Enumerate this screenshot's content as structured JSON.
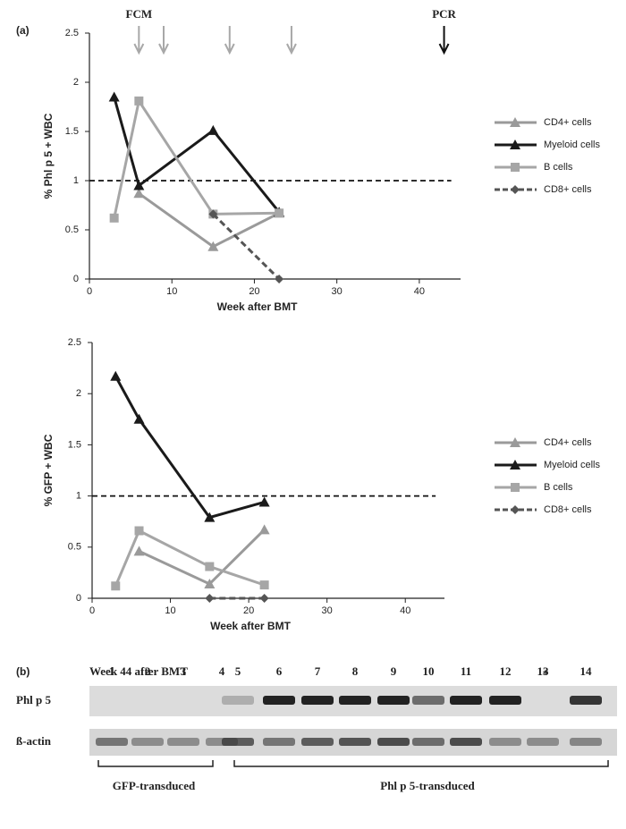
{
  "panel_a_label": "(a)",
  "panel_b_label": "(b)",
  "chart_data": [
    {
      "type": "line",
      "ylabel": "% Phl p 5 + WBC",
      "xlabel": "Week after BMT",
      "xlim": [
        0,
        45
      ],
      "xticks": [
        0,
        10,
        20,
        30,
        40
      ],
      "ylim": [
        0,
        2.5
      ],
      "yticks": [
        0,
        0.5,
        1,
        1.5,
        2,
        2.5
      ],
      "reference_line": 1,
      "annotations": [
        {
          "text": "FCM",
          "color": "#a8a8a8",
          "x": [
            6,
            9,
            17,
            24.5
          ]
        },
        {
          "text": "PCR",
          "color": "#111111",
          "x": [
            43
          ]
        }
      ],
      "series": [
        {
          "name": "CD4+ cells",
          "color": "#9a9a9a",
          "marker": "triangle",
          "dash": false,
          "x": [
            6,
            15,
            23
          ],
          "values": [
            0.87,
            0.33,
            0.67
          ]
        },
        {
          "name": "Myeloid cells",
          "color": "#1a1a1a",
          "marker": "triangle",
          "dash": false,
          "x": [
            3,
            6,
            15,
            23
          ],
          "values": [
            1.85,
            0.95,
            1.51,
            0.68
          ]
        },
        {
          "name": "B cells",
          "color": "#a6a6a6",
          "marker": "square",
          "dash": false,
          "x": [
            3,
            6,
            15,
            23
          ],
          "values": [
            0.62,
            1.81,
            0.66,
            0.67
          ]
        },
        {
          "name": "CD8+ cells",
          "color": "#555555",
          "marker": "diamond",
          "dash": true,
          "x": [
            15,
            23
          ],
          "values": [
            0.66,
            0.0
          ]
        }
      ]
    },
    {
      "type": "line",
      "ylabel": "% GFP + WBC",
      "xlabel": "Week after BMT",
      "xlim": [
        0,
        45
      ],
      "xticks": [
        0,
        10,
        20,
        30,
        40
      ],
      "ylim": [
        0,
        2.5
      ],
      "yticks": [
        0,
        0.5,
        1,
        1.5,
        2,
        2.5
      ],
      "reference_line": 1,
      "series": [
        {
          "name": "CD4+ cells",
          "color": "#9a9a9a",
          "marker": "triangle",
          "dash": false,
          "x": [
            6,
            15,
            22
          ],
          "values": [
            0.46,
            0.14,
            0.67
          ]
        },
        {
          "name": "Myeloid cells",
          "color": "#1a1a1a",
          "marker": "triangle",
          "dash": false,
          "x": [
            3,
            6,
            15,
            22
          ],
          "values": [
            2.17,
            1.75,
            0.79,
            0.94
          ]
        },
        {
          "name": "B cells",
          "color": "#a6a6a6",
          "marker": "square",
          "dash": false,
          "x": [
            3,
            6,
            15,
            22
          ],
          "values": [
            0.12,
            0.66,
            0.31,
            0.13
          ]
        },
        {
          "name": "CD8+ cells",
          "color": "#555555",
          "marker": "diamond",
          "dash": true,
          "x": [
            15,
            22
          ],
          "values": [
            0.0,
            0.0
          ]
        }
      ]
    }
  ],
  "gel": {
    "title": "Week 44 after BMT",
    "lanes": [
      "1",
      "2",
      "3",
      "4",
      "5",
      "6",
      "7",
      "8",
      "9",
      "10",
      "11",
      "12",
      "13",
      "14"
    ],
    "star": "*",
    "rows": [
      "Phl p 5",
      "ß-actin"
    ],
    "groups": [
      "GFP-transduced",
      "Phl p 5-transduced"
    ]
  }
}
